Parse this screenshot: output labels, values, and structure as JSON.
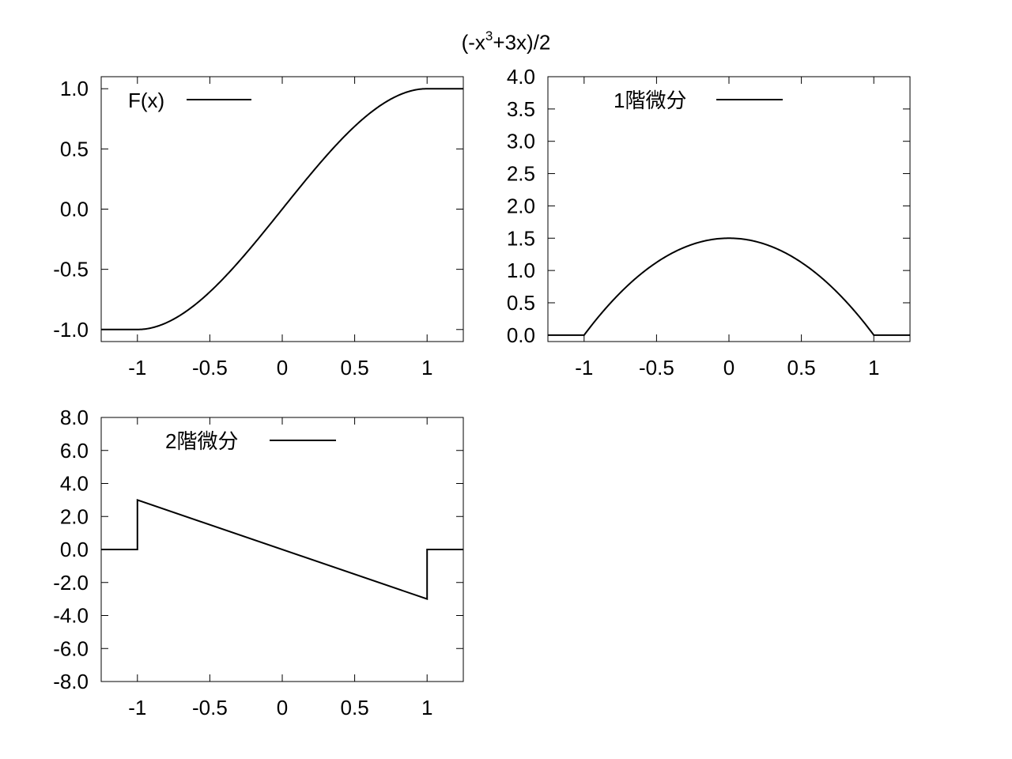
{
  "figure": {
    "title_prefix": "(-x",
    "title_sup": "3",
    "title_suffix": "+3x)/2"
  },
  "chart_data": [
    {
      "type": "line",
      "legend_label": "F(x)",
      "legend_placement": "top-left",
      "xlim": [
        -1.25,
        1.25
      ],
      "ylim": [
        -1.1,
        1.1
      ],
      "xticks": [
        -1,
        -0.5,
        0,
        0.5,
        1
      ],
      "xtick_labels": [
        "-1",
        "-0.5",
        "0",
        "0.5",
        "1"
      ],
      "yticks": [
        -1,
        -0.5,
        0,
        0.5,
        1
      ],
      "ytick_labels": [
        "-1.0",
        "-0.5",
        "0.0",
        "0.5",
        "1.0"
      ],
      "grid": false,
      "series": [
        {
          "x": [
            -1.25,
            -1.0,
            -0.75,
            -0.5,
            -0.25,
            0.0,
            0.25,
            0.5,
            0.75,
            1.0,
            1.25
          ],
          "y": [
            -1.0,
            -1.0,
            -0.914,
            -0.688,
            -0.367,
            0.0,
            0.367,
            0.688,
            0.914,
            1.0,
            1.0
          ]
        }
      ]
    },
    {
      "type": "line",
      "legend_label": "1階微分",
      "legend_placement": "top-center",
      "xlim": [
        -1.25,
        1.25
      ],
      "ylim": [
        -0.1,
        4.0
      ],
      "xticks": [
        -1,
        -0.5,
        0,
        0.5,
        1
      ],
      "xtick_labels": [
        "-1",
        "-0.5",
        "0",
        "0.5",
        "1"
      ],
      "yticks": [
        0,
        0.5,
        1,
        1.5,
        2,
        2.5,
        3,
        3.5,
        4
      ],
      "ytick_labels": [
        "0.0",
        "0.5",
        "1.0",
        "1.5",
        "2.0",
        "2.5",
        "3.0",
        "3.5",
        "4.0"
      ],
      "grid": false,
      "series": [
        {
          "x": [
            -1.25,
            -1.0,
            -0.75,
            -0.5,
            -0.25,
            0.0,
            0.25,
            0.5,
            0.75,
            1.0,
            1.25
          ],
          "y": [
            0.0,
            0.0,
            0.656,
            1.125,
            1.406,
            1.5,
            1.406,
            1.125,
            0.656,
            0.0,
            0.0
          ]
        }
      ]
    },
    {
      "type": "line",
      "legend_label": "2階微分",
      "legend_placement": "top-left",
      "xlim": [
        -1.25,
        1.25
      ],
      "ylim": [
        -8.0,
        8.0
      ],
      "xticks": [
        -1,
        -0.5,
        0,
        0.5,
        1
      ],
      "xtick_labels": [
        "-1",
        "-0.5",
        "0",
        "0.5",
        "1"
      ],
      "yticks": [
        -8,
        -6,
        -4,
        -2,
        0,
        2,
        4,
        6,
        8
      ],
      "ytick_labels": [
        "-8.0",
        "-6.0",
        "-4.0",
        "-2.0",
        "0.0",
        "2.0",
        "4.0",
        "6.0",
        "8.0"
      ],
      "grid": false,
      "series": [
        {
          "x": [
            -1.25,
            -1.0,
            -1.0,
            1.0,
            1.0,
            1.25
          ],
          "y": [
            0.0,
            0.0,
            3.0,
            -3.0,
            0.0,
            0.0
          ]
        }
      ]
    }
  ]
}
